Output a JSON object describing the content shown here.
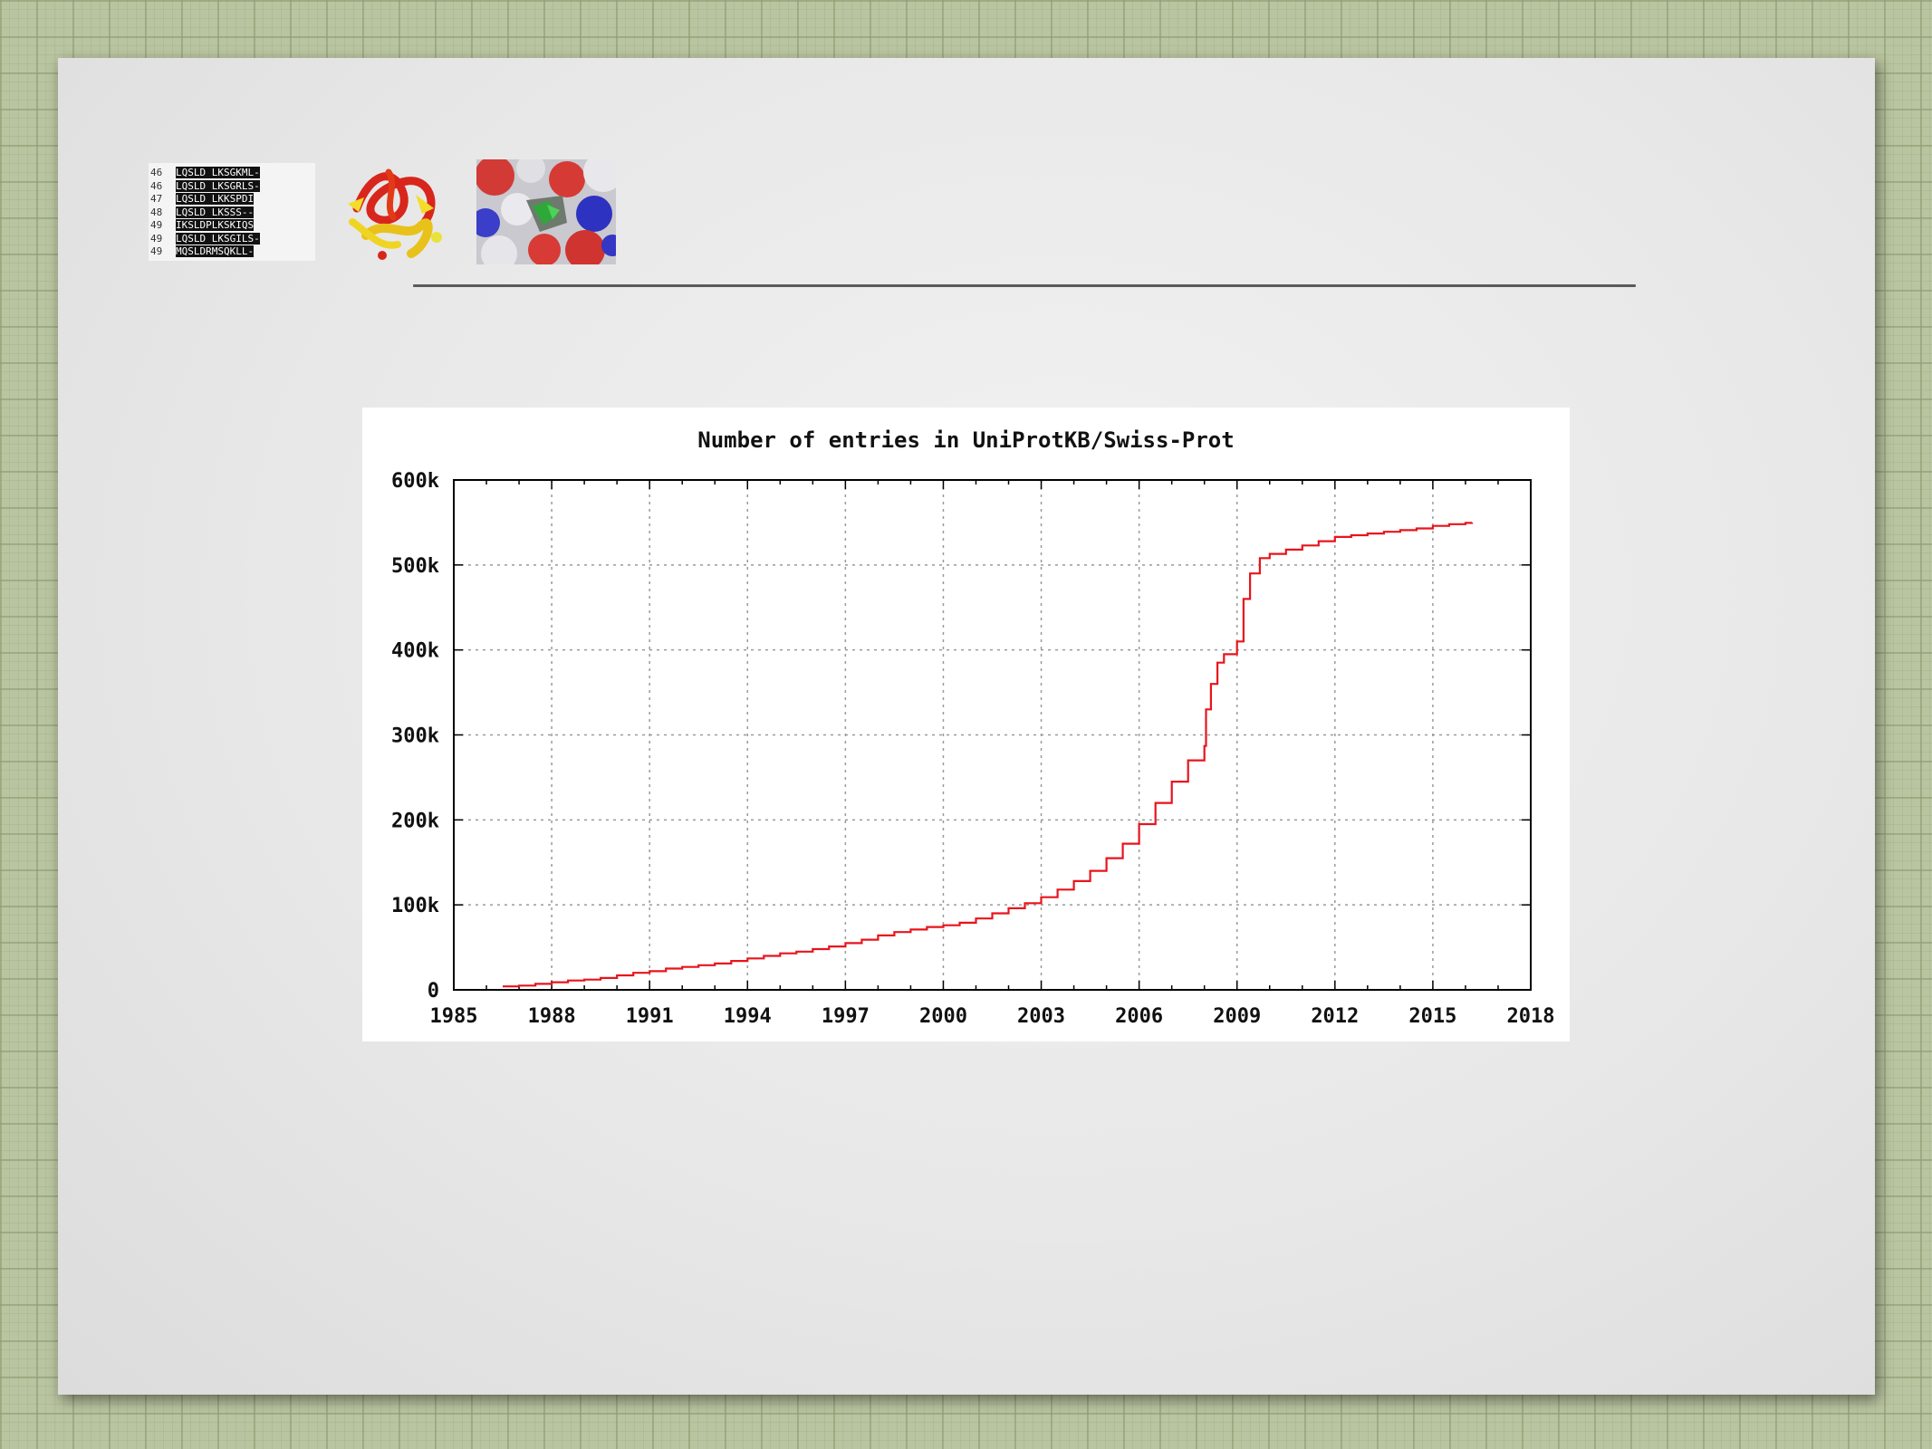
{
  "slide": {
    "thumbnails": [
      {
        "name": "sequence-alignment",
        "rows": [
          {
            "num": "46",
            "seq": "LQSLD LKSGKML-"
          },
          {
            "num": "46",
            "seq": "LQSLD LKSGRLS-"
          },
          {
            "num": "47",
            "seq": "LQSLD LKKSPDI"
          },
          {
            "num": "48",
            "seq": "LQSLD LKSSS--"
          },
          {
            "num": "49",
            "seq": "IKSLDPLKSKIQS"
          },
          {
            "num": "49",
            "seq": "LQSLD LKSGILS-"
          },
          {
            "num": "49",
            "seq": "MQSLDRMSQKLL-"
          }
        ]
      },
      {
        "name": "protein-ribbon-structure"
      },
      {
        "name": "protein-surface-structure"
      }
    ]
  },
  "chart_data": {
    "type": "line",
    "title": "Number of entries in UniProtKB/Swiss-Prot",
    "xlabel": "",
    "ylabel": "",
    "xlim": [
      1985,
      2018
    ],
    "ylim": [
      0,
      600000
    ],
    "x_ticks": [
      1985,
      1988,
      1991,
      1994,
      1997,
      2000,
      2003,
      2006,
      2009,
      2012,
      2015,
      2018
    ],
    "x_tick_labels": [
      "1985",
      "1988",
      "1991",
      "1994",
      "1997",
      "2000",
      "2003",
      "2006",
      "2009",
      "2012",
      "2015",
      "2018"
    ],
    "y_ticks": [
      0,
      100000,
      200000,
      300000,
      400000,
      500000,
      600000
    ],
    "y_tick_labels": [
      "0",
      "100k",
      "200k",
      "300k",
      "400k",
      "500k",
      "600k"
    ],
    "grid": true,
    "line_color": "#e8141c",
    "series": [
      {
        "name": "",
        "x": [
          1986.5,
          1987.0,
          1987.5,
          1988.0,
          1988.5,
          1989.0,
          1989.5,
          1990.0,
          1990.5,
          1991.0,
          1991.5,
          1992.0,
          1992.5,
          1993.0,
          1993.5,
          1994.0,
          1994.5,
          1995.0,
          1995.5,
          1996.0,
          1996.5,
          1997.0,
          1997.5,
          1998.0,
          1998.5,
          1999.0,
          1999.5,
          2000.0,
          2000.5,
          2001.0,
          2001.5,
          2002.0,
          2002.5,
          2003.0,
          2003.5,
          2004.0,
          2004.5,
          2005.0,
          2005.5,
          2006.0,
          2006.5,
          2007.0,
          2007.5,
          2008.0,
          2008.05,
          2008.2,
          2008.4,
          2008.6,
          2009.0,
          2009.2,
          2009.4,
          2009.7,
          2010.0,
          2010.5,
          2011.0,
          2011.5,
          2012.0,
          2012.5,
          2013.0,
          2013.5,
          2014.0,
          2014.5,
          2015.0,
          2015.5,
          2016.0,
          2016.2
        ],
        "y": [
          4000,
          5000,
          7000,
          9000,
          11000,
          12000,
          14000,
          17000,
          20000,
          22000,
          25000,
          27000,
          29000,
          31000,
          34000,
          37000,
          40000,
          43000,
          45000,
          48000,
          51000,
          55000,
          59000,
          64000,
          68000,
          71000,
          74000,
          76000,
          79000,
          84000,
          90000,
          96000,
          102000,
          109000,
          118000,
          128000,
          140000,
          155000,
          172000,
          195000,
          220000,
          245000,
          270000,
          287000,
          330000,
          360000,
          385000,
          395000,
          410000,
          460000,
          490000,
          508000,
          513000,
          518000,
          523000,
          528000,
          533000,
          535000,
          537000,
          539000,
          541000,
          543000,
          546000,
          548000,
          549500,
          550000
        ]
      }
    ]
  }
}
